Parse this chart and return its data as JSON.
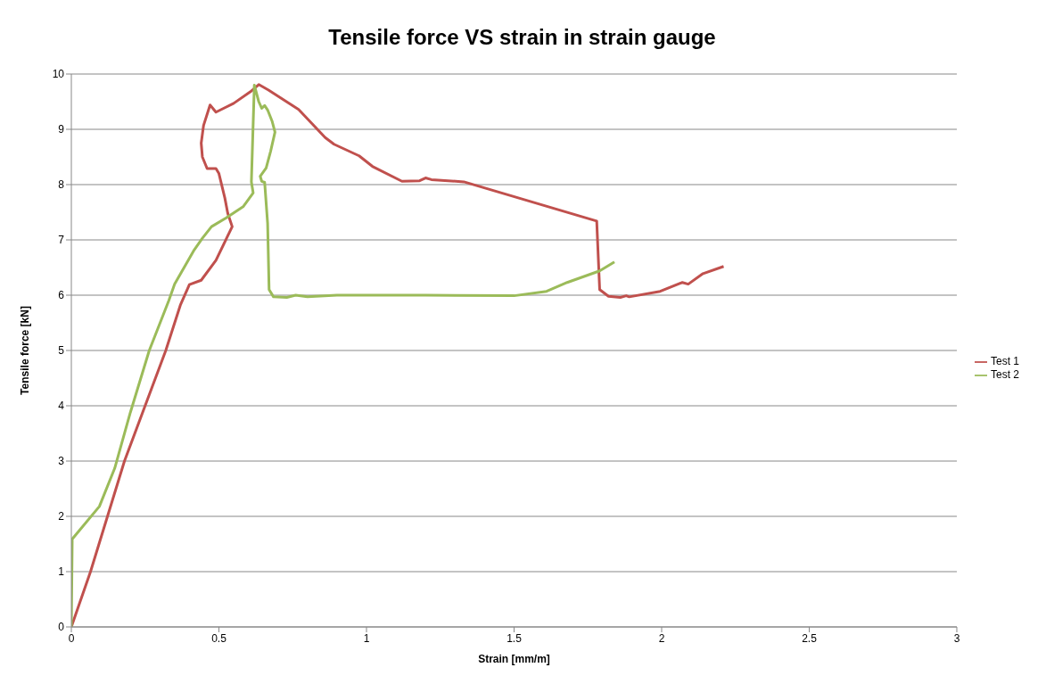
{
  "chart_data": {
    "type": "line",
    "title": "Tensile force VS strain in strain gauge",
    "xlabel": "Strain [mm/m]",
    "ylabel": "Tensile force [kN]",
    "xlim": [
      0,
      3
    ],
    "xticks": [
      0,
      0.5,
      1,
      1.5,
      2,
      2.5,
      3
    ],
    "ylim": [
      0,
      10
    ],
    "yticks": [
      0,
      1,
      2,
      3,
      4,
      5,
      6,
      7,
      8,
      9,
      10
    ],
    "grid": "y",
    "legend": "right",
    "marker": "none",
    "line_style": "solid",
    "series": [
      {
        "name": "Test 1",
        "color": "#c0504d",
        "x": [
          0,
          0.065,
          0.18,
          0.32,
          0.37,
          0.4,
          0.44,
          0.49,
          0.545,
          0.53,
          0.52,
          0.5,
          0.49,
          0.46,
          0.444,
          0.44,
          0.448,
          0.47,
          0.49,
          0.55,
          0.607,
          0.635,
          0.668,
          0.77,
          0.86,
          0.89,
          0.975,
          1.02,
          1.12,
          1.18,
          1.2,
          1.22,
          1.33,
          1.78,
          1.79,
          1.82,
          1.86,
          1.88,
          1.89,
          1.995,
          2.07,
          2.09,
          2.14,
          2.21
        ],
        "values": [
          0,
          1.0,
          3.0,
          5.0,
          5.83,
          6.19,
          6.27,
          6.63,
          7.24,
          7.48,
          7.76,
          8.2,
          8.29,
          8.29,
          8.5,
          8.75,
          9.07,
          9.44,
          9.31,
          9.47,
          9.68,
          9.81,
          9.71,
          9.36,
          8.85,
          8.73,
          8.52,
          8.33,
          8.06,
          8.07,
          8.12,
          8.09,
          8.05,
          7.34,
          6.1,
          5.98,
          5.96,
          5.99,
          5.97,
          6.07,
          6.23,
          6.2,
          6.39,
          6.52
        ]
      },
      {
        "name": "Test 2",
        "color": "#9bbb59",
        "x": [
          0,
          0.003,
          0.095,
          0.147,
          0.2,
          0.264,
          0.33,
          0.35,
          0.414,
          0.444,
          0.475,
          0.525,
          0.582,
          0.616,
          0.61,
          0.62,
          0.635,
          0.645,
          0.655,
          0.665,
          0.68,
          0.69,
          0.675,
          0.66,
          0.64,
          0.645,
          0.655,
          0.665,
          0.67,
          0.685,
          0.73,
          0.76,
          0.8,
          0.9,
          1.2,
          1.5,
          1.61,
          1.68,
          1.79,
          1.84
        ],
        "values": [
          0,
          1.59,
          2.18,
          2.87,
          3.88,
          5.0,
          5.9,
          6.2,
          6.8,
          7.03,
          7.24,
          7.4,
          7.6,
          7.85,
          8.05,
          9.8,
          9.5,
          9.38,
          9.43,
          9.35,
          9.15,
          8.95,
          8.6,
          8.3,
          8.15,
          8.06,
          8.04,
          7.3,
          6.1,
          5.97,
          5.96,
          6.0,
          5.97,
          6.0,
          6.0,
          5.99,
          6.07,
          6.23,
          6.44,
          6.6
        ]
      }
    ]
  }
}
